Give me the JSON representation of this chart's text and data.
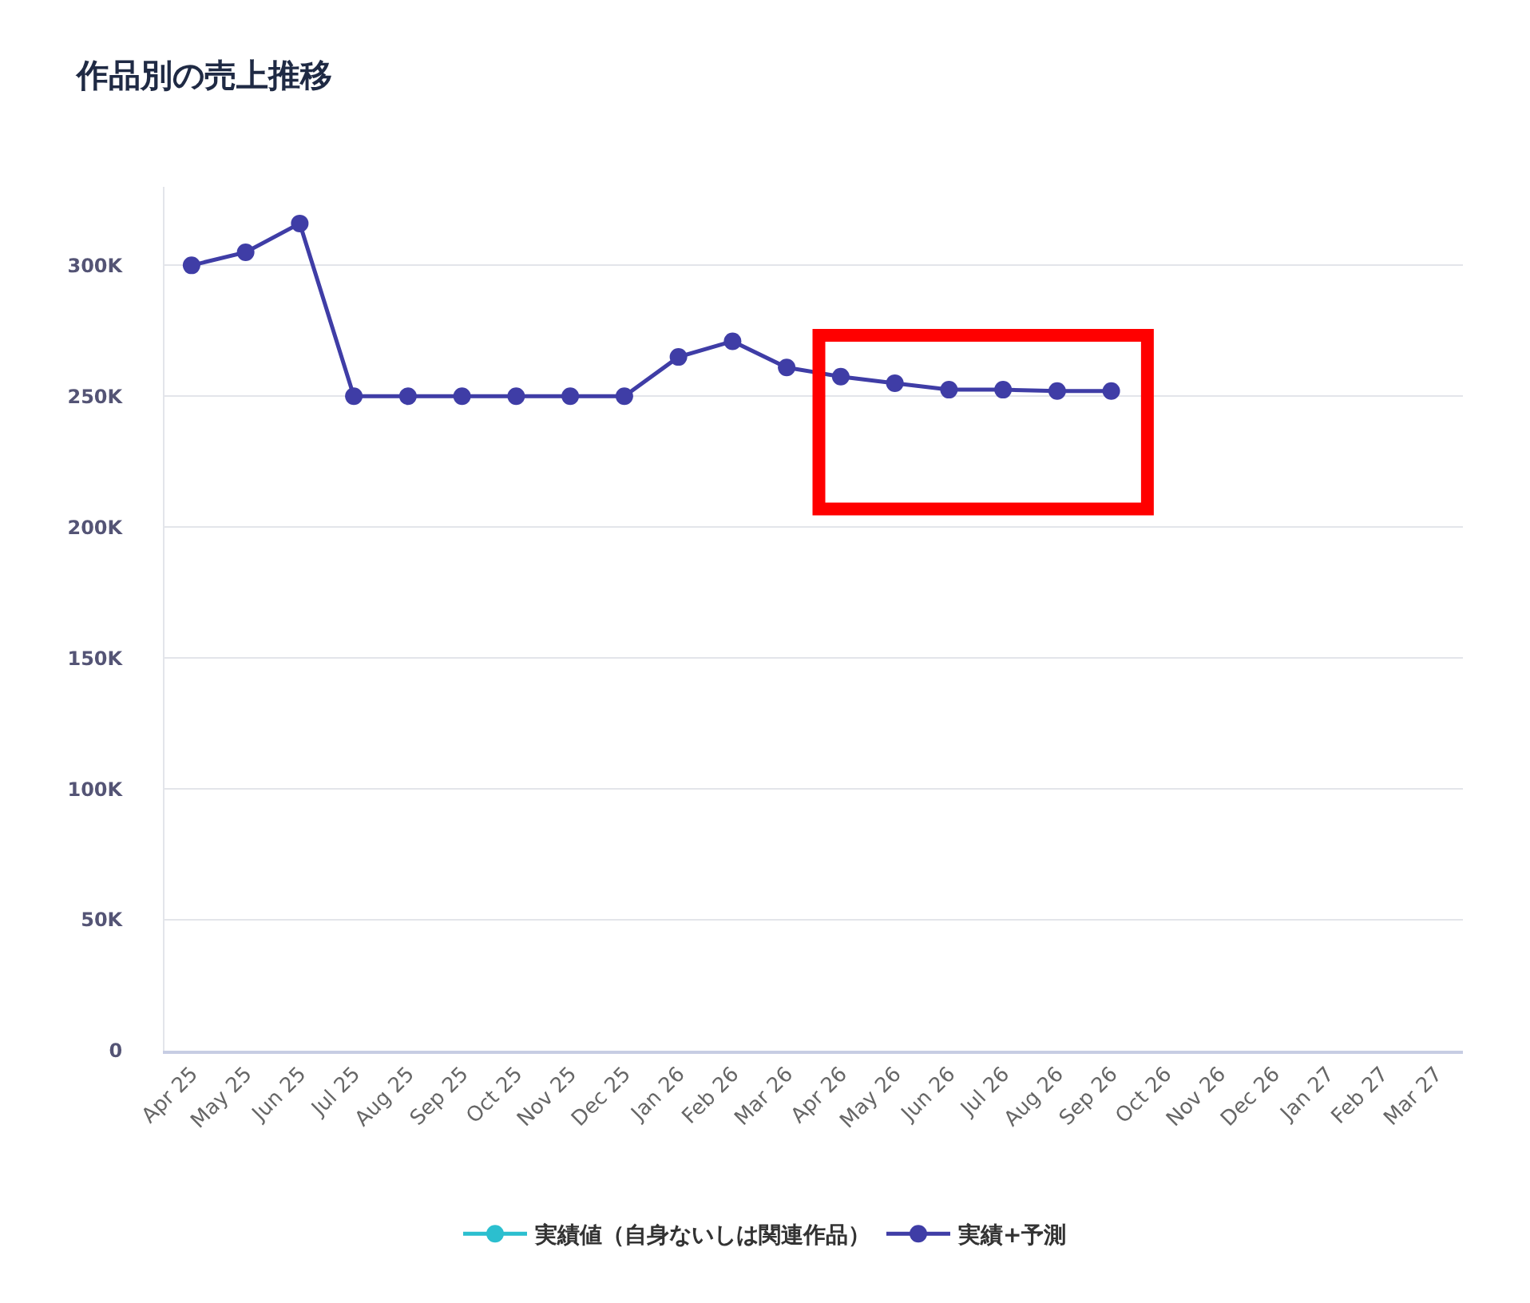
{
  "chart_data": {
    "type": "line",
    "title": "作品別の売上推移",
    "categories": [
      "Apr 25",
      "May 25",
      "Jun 25",
      "Jul 25",
      "Aug 25",
      "Sep 25",
      "Oct 25",
      "Nov 25",
      "Dec 25",
      "Jan 26",
      "Feb 26",
      "Mar 26",
      "Apr 26",
      "May 26",
      "Jun 26",
      "Jul 26",
      "Aug 26",
      "Sep 26",
      "Oct 26",
      "Nov 26",
      "Dec 26",
      "Jan 27",
      "Feb 27",
      "Mar 27"
    ],
    "series": [
      {
        "name": "実績値（自身ないしは関連作品）",
        "color": "#2bbfcf",
        "values": [
          null,
          null,
          null,
          null,
          null,
          null,
          null,
          null,
          null,
          null,
          null,
          null,
          null,
          null,
          null,
          null,
          null,
          null,
          null,
          null,
          null,
          null,
          null,
          null
        ]
      },
      {
        "name": "実績+予測",
        "color": "#3f3da6",
        "values": [
          300000,
          305000,
          316000,
          250000,
          250000,
          250000,
          250000,
          250000,
          250000,
          265000,
          271000,
          261000,
          257500,
          255000,
          252500,
          252500,
          252000,
          252000,
          null,
          null,
          null,
          null,
          null,
          null
        ]
      }
    ],
    "ylim": [
      0,
      330000
    ],
    "yticks": [
      {
        "value": 0,
        "label": "0"
      },
      {
        "value": 50000,
        "label": "50K"
      },
      {
        "value": 100000,
        "label": "100K"
      },
      {
        "value": 150000,
        "label": "150K"
      },
      {
        "value": 200000,
        "label": "200K"
      },
      {
        "value": 250000,
        "label": "250K"
      },
      {
        "value": 300000,
        "label": "300K"
      }
    ],
    "grid": "y",
    "legend": "bottom",
    "marker": "circle",
    "line_style": "solid"
  }
}
